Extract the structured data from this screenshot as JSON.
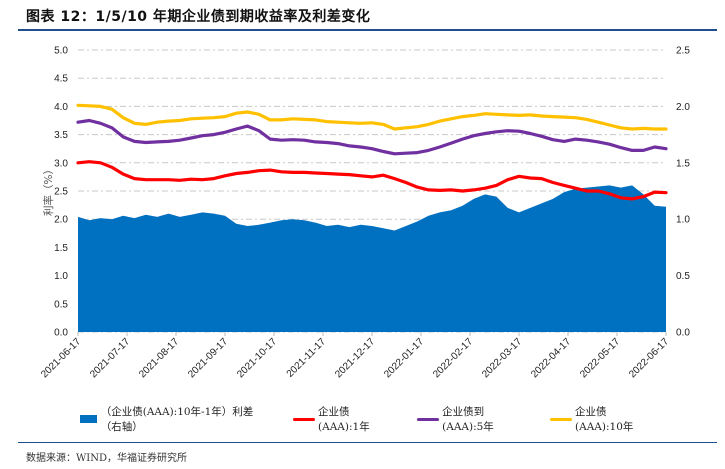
{
  "header": {
    "title": "图表 12：1/5/10 年期企业债到期收益率及利差变化"
  },
  "footer": {
    "source": "数据来源：WIND，华福证券研究所"
  },
  "colors": {
    "spread": "#0070c0",
    "y1": "#ff0000",
    "y5": "#7030a0",
    "y10": "#ffc000",
    "rule": "#1f4e8c",
    "grid": "#c8c8c8"
  },
  "chart_data": {
    "type": "line",
    "title": "1/5/10 年期企业债到期收益率及利差变化",
    "ylabel": "利率（%）",
    "ylabel_right": "",
    "ylim": [
      0,
      5.0
    ],
    "ylim_right": [
      0,
      2.5
    ],
    "yticks": [
      "0.0",
      "0.5",
      "1.0",
      "1.5",
      "2.0",
      "2.5",
      "3.0",
      "3.5",
      "4.0",
      "4.5",
      "5.0"
    ],
    "yticks_right": [
      "0.0",
      "0.5",
      "1.0",
      "1.5",
      "2.0",
      "2.5"
    ],
    "xticks": [
      "2021-06-17",
      "2021-07-17",
      "2021-08-17",
      "2021-09-17",
      "2021-10-17",
      "2021-11-17",
      "2021-12-17",
      "2022-01-17",
      "2022-02-17",
      "2022-03-17",
      "2022-04-17",
      "2022-05-17",
      "2022-06-17"
    ],
    "grid": true,
    "legend_position": "bottom",
    "x_range": [
      "2021-06-17",
      "2022-06-17"
    ],
    "series": [
      {
        "name": "（企业债(AAA):10年-1年）利差（右轴）",
        "type": "area",
        "axis": "right",
        "values": [
          1.02,
          0.99,
          1.01,
          1.0,
          1.03,
          1.01,
          1.04,
          1.02,
          1.05,
          1.02,
          1.04,
          1.06,
          1.05,
          1.03,
          0.96,
          0.94,
          0.95,
          0.97,
          0.99,
          1.0,
          0.99,
          0.97,
          0.94,
          0.95,
          0.93,
          0.95,
          0.94,
          0.92,
          0.9,
          0.94,
          0.98,
          1.03,
          1.06,
          1.08,
          1.12,
          1.18,
          1.22,
          1.2,
          1.1,
          1.06,
          1.1,
          1.14,
          1.18,
          1.24,
          1.27,
          1.28,
          1.29,
          1.3,
          1.28,
          1.3,
          1.22,
          1.12,
          1.11
        ]
      },
      {
        "name": "企业债(AAA):1年",
        "axis": "left",
        "values": [
          3.0,
          3.02,
          3.0,
          2.92,
          2.8,
          2.72,
          2.7,
          2.7,
          2.7,
          2.69,
          2.71,
          2.7,
          2.72,
          2.77,
          2.81,
          2.83,
          2.86,
          2.87,
          2.84,
          2.83,
          2.83,
          2.82,
          2.81,
          2.8,
          2.79,
          2.77,
          2.75,
          2.78,
          2.72,
          2.65,
          2.57,
          2.52,
          2.51,
          2.52,
          2.5,
          2.52,
          2.55,
          2.6,
          2.7,
          2.76,
          2.73,
          2.72,
          2.65,
          2.6,
          2.55,
          2.5,
          2.5,
          2.45,
          2.38,
          2.36,
          2.4,
          2.48,
          2.47
        ]
      },
      {
        "name": "企业债到(AAA):5年",
        "axis": "left",
        "values": [
          3.72,
          3.75,
          3.7,
          3.62,
          3.46,
          3.38,
          3.36,
          3.37,
          3.38,
          3.4,
          3.44,
          3.48,
          3.5,
          3.54,
          3.6,
          3.65,
          3.57,
          3.42,
          3.4,
          3.41,
          3.4,
          3.37,
          3.36,
          3.34,
          3.3,
          3.28,
          3.25,
          3.2,
          3.16,
          3.17,
          3.18,
          3.22,
          3.28,
          3.35,
          3.42,
          3.48,
          3.52,
          3.55,
          3.57,
          3.56,
          3.52,
          3.47,
          3.41,
          3.38,
          3.42,
          3.4,
          3.37,
          3.33,
          3.27,
          3.22,
          3.22,
          3.28,
          3.25
        ]
      },
      {
        "name": "企业债(AAA):10年",
        "axis": "left",
        "values": [
          4.02,
          4.01,
          4.0,
          3.95,
          3.8,
          3.7,
          3.68,
          3.72,
          3.74,
          3.75,
          3.78,
          3.79,
          3.8,
          3.82,
          3.88,
          3.9,
          3.86,
          3.76,
          3.76,
          3.78,
          3.77,
          3.76,
          3.73,
          3.72,
          3.71,
          3.7,
          3.71,
          3.68,
          3.6,
          3.62,
          3.64,
          3.68,
          3.74,
          3.78,
          3.82,
          3.84,
          3.87,
          3.86,
          3.85,
          3.84,
          3.85,
          3.83,
          3.82,
          3.81,
          3.8,
          3.77,
          3.72,
          3.67,
          3.62,
          3.6,
          3.61,
          3.6,
          3.6
        ]
      }
    ]
  }
}
